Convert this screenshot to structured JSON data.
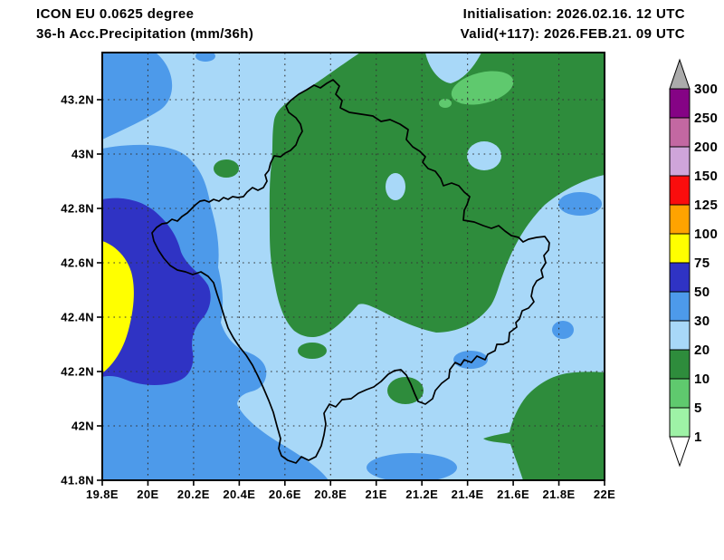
{
  "header": {
    "model_line": "ICON EU 0.0625 degree",
    "product_line": "36-h Acc.Precipitation (mm/36h)",
    "init_line": "Initialisation: 2026.02.16. 12 UTC",
    "valid_line": "Valid(+117): 2026.FEB.21. 09 UTC"
  },
  "axes": {
    "lon": {
      "labels": [
        "19.8E",
        "20E",
        "20.2E",
        "20.4E",
        "20.6E",
        "20.8E",
        "21E",
        "21.2E",
        "21.4E",
        "21.6E",
        "21.8E",
        "22E"
      ],
      "values": [
        19.8,
        20.0,
        20.2,
        20.4,
        20.6,
        20.8,
        21.0,
        21.2,
        21.4,
        21.6,
        21.8,
        22.0
      ]
    },
    "lat": {
      "labels": [
        "41.8N",
        "42N",
        "42.2N",
        "42.4N",
        "42.6N",
        "42.8N",
        "43N",
        "43.2N"
      ],
      "values": [
        41.8,
        42.0,
        42.2,
        42.4,
        42.6,
        42.8,
        43.0,
        43.2
      ]
    }
  },
  "colorbar": {
    "unit": "mm/36h",
    "boundary_labels": [
      "1",
      "5",
      "10",
      "20",
      "30",
      "50",
      "75",
      "100",
      "125",
      "150",
      "200",
      "250",
      "300"
    ],
    "segments": [
      {
        "min": 1,
        "color": "#9EF2A6"
      },
      {
        "min": 5,
        "color": "#5FC96E"
      },
      {
        "min": 10,
        "color": "#2E8C3C"
      },
      {
        "min": 20,
        "color": "#A8D8F8"
      },
      {
        "min": 30,
        "color": "#4D9AEA"
      },
      {
        "min": 50,
        "color": "#2F33C4"
      },
      {
        "min": 75,
        "color": "#FFFF00"
      },
      {
        "min": 100,
        "color": "#FFA300"
      },
      {
        "min": 125,
        "color": "#FA0D0D"
      },
      {
        "min": 150,
        "color": "#CFA5DA"
      },
      {
        "min": 200,
        "color": "#C368A2"
      },
      {
        "min": 250,
        "color": "#850385"
      }
    ],
    "overflow_color": "#ABABAB",
    "underflow_color": "#FFFFFF"
  },
  "map": {
    "border_color": "#000000",
    "grid_color": "#333333"
  }
}
